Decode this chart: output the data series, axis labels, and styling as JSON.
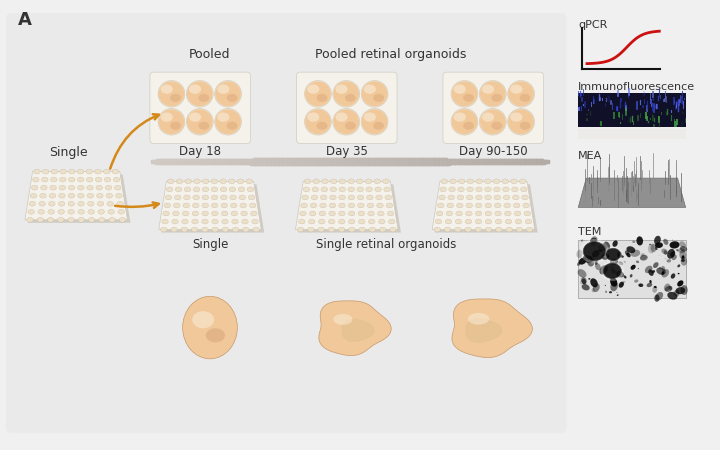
{
  "bg_color": "#f0f0f0",
  "panel_color": "#e8e8e8",
  "title_label": "A",
  "text_single_left": "Single",
  "text_pooled": "Pooled",
  "text_pooled_organoids": "Pooled retinal organoids",
  "text_single_organoids": "Single retinal organoids",
  "text_single_bottom": "Single",
  "text_day18": "Day 18",
  "text_day35": "Day 35",
  "text_day90": "Day 90-150",
  "text_qpcr": "qPCR",
  "text_if": "Immunofluorescence",
  "text_mea": "MEA",
  "text_tem": "TEM",
  "arrow_color": "#D4891A",
  "organoid_peach": "#f0c89a",
  "organoid_dark": "#d4986a",
  "organoid_light": "#f8e8d0",
  "plate_face": "#f8f5f0",
  "plate_edge": "#d0ccc0",
  "well_face": "#ede0c8",
  "well_highlight": "#fdf6ee"
}
